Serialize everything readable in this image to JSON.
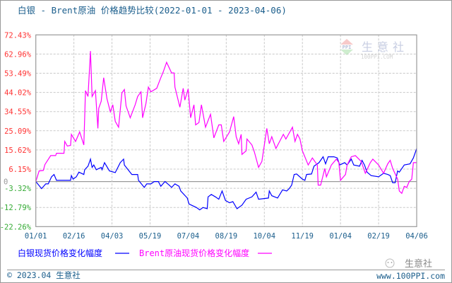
{
  "chart_data": {
    "type": "line",
    "title": "白银 - Brent原油 价格趋势比较(2022-01-01 - 2023-04-06)",
    "xlabel": "",
    "ylabel": "",
    "x_range": [
      "2022-01-01",
      "2023-04-06"
    ],
    "x_ticks": [
      "01/01",
      "02/16",
      "04/03",
      "05/19",
      "07/04",
      "08/19",
      "10/04",
      "11/19",
      "01/04",
      "02/19",
      "04/06"
    ],
    "y_ticks": [
      "72.43%",
      "62.96%",
      "53.49%",
      "44.02%",
      "34.55%",
      "25.09%",
      "15.62%",
      "6.15%",
      "0",
      "-3.32%",
      "-12.79%",
      "-22.26%"
    ],
    "y_tick_values": [
      72.43,
      62.96,
      53.49,
      44.02,
      34.55,
      25.09,
      15.62,
      6.15,
      0,
      -3.32,
      -12.79,
      -22.26
    ],
    "ylim": [
      -22.26,
      72.43
    ],
    "grid": true,
    "legend_position": "bottom-left",
    "colors": {
      "positive_tick": "#ff3333",
      "negative_tick": "#33aa33",
      "zero_tick": "#999999",
      "silver": "#0000ff",
      "brent": "#ff00ff"
    },
    "series": [
      {
        "name": "白银现货价格变化幅度",
        "color": "#0000ff",
        "points": [
          [
            "2022-01-01",
            0
          ],
          [
            "2022-01-08",
            -3.5
          ],
          [
            "2022-01-13",
            -1.17
          ],
          [
            "2022-01-16",
            -1.17
          ],
          [
            "2022-01-20",
            2.33
          ],
          [
            "2022-01-23",
            3.5
          ],
          [
            "2022-01-26",
            0.58
          ],
          [
            "2022-02-12",
            0.58
          ],
          [
            "2022-02-13",
            2.92
          ],
          [
            "2022-02-15",
            1.17
          ],
          [
            "2022-02-19",
            2.33
          ],
          [
            "2022-02-22",
            4.66
          ],
          [
            "2022-02-28",
            3.5
          ],
          [
            "2022-03-01",
            5.83
          ],
          [
            "2022-03-05",
            7.58
          ],
          [
            "2022-03-08",
            11.08
          ],
          [
            "2022-03-10",
            7.0
          ],
          [
            "2022-03-12",
            8.16
          ],
          [
            "2022-03-15",
            5.83
          ],
          [
            "2022-03-21",
            7.0
          ],
          [
            "2022-03-22",
            5.83
          ],
          [
            "2022-03-25",
            9.33
          ],
          [
            "2022-03-31",
            5.25
          ],
          [
            "2022-04-07",
            4.43
          ],
          [
            "2022-04-13",
            9.33
          ],
          [
            "2022-04-17",
            11.08
          ],
          [
            "2022-04-18",
            8.16
          ],
          [
            "2022-04-27",
            3.5
          ],
          [
            "2022-05-04",
            3.5
          ],
          [
            "2022-05-05",
            0.58
          ],
          [
            "2022-05-12",
            -2.92
          ],
          [
            "2022-05-15",
            -1.17
          ],
          [
            "2022-05-20",
            -1.17
          ],
          [
            "2022-05-24",
            0
          ],
          [
            "2022-05-29",
            0
          ],
          [
            "2022-06-01",
            -2.33
          ],
          [
            "2022-06-06",
            0
          ],
          [
            "2022-06-11",
            -1.75
          ],
          [
            "2022-06-14",
            -2.92
          ],
          [
            "2022-06-18",
            -1.17
          ],
          [
            "2022-06-23",
            -2.33
          ],
          [
            "2022-06-25",
            -4.66
          ],
          [
            "2022-07-03",
            -8.16
          ],
          [
            "2022-07-05",
            -11.08
          ],
          [
            "2022-07-14",
            -12.83
          ],
          [
            "2022-07-18",
            -13.99
          ],
          [
            "2022-07-22",
            -12.83
          ],
          [
            "2022-07-27",
            -13.41
          ],
          [
            "2022-07-28",
            -7.58
          ],
          [
            "2022-08-01",
            -6.41
          ],
          [
            "2022-08-06",
            -7.58
          ],
          [
            "2022-08-10",
            -8.75
          ],
          [
            "2022-08-14",
            -4.66
          ],
          [
            "2022-08-18",
            -9.33
          ],
          [
            "2022-08-23",
            -10.49
          ],
          [
            "2022-08-27",
            -9.91
          ],
          [
            "2022-09-01",
            -13.41
          ],
          [
            "2022-09-07",
            -11.66
          ],
          [
            "2022-09-12",
            -8.75
          ],
          [
            "2022-09-19",
            -7.58
          ],
          [
            "2022-09-24",
            -5.25
          ],
          [
            "2022-09-27",
            -8.75
          ],
          [
            "2022-10-09",
            -8.16
          ],
          [
            "2022-10-10",
            -4.66
          ],
          [
            "2022-10-13",
            -7.0
          ],
          [
            "2022-10-20",
            -8.16
          ],
          [
            "2022-10-26",
            -4.08
          ],
          [
            "2022-10-31",
            -4.66
          ],
          [
            "2022-11-03",
            -3.5
          ],
          [
            "2022-11-06",
            -1.75
          ],
          [
            "2022-11-09",
            3.5
          ],
          [
            "2022-11-12",
            3.73
          ],
          [
            "2022-11-19",
            1.17
          ],
          [
            "2022-11-22",
            0.58
          ],
          [
            "2022-11-24",
            3.5
          ],
          [
            "2022-11-30",
            3.73
          ],
          [
            "2022-12-03",
            7.58
          ],
          [
            "2022-12-09",
            9.33
          ],
          [
            "2022-12-14",
            12.24
          ],
          [
            "2022-12-17",
            8.75
          ],
          [
            "2022-12-20",
            12.24
          ],
          [
            "2022-12-27",
            12.24
          ],
          [
            "2022-12-31",
            11.66
          ],
          [
            "2023-01-03",
            8.16
          ],
          [
            "2023-01-09",
            9.33
          ],
          [
            "2023-01-12",
            8.16
          ],
          [
            "2023-01-17",
            11.08
          ],
          [
            "2023-01-20",
            8.16
          ],
          [
            "2023-01-27",
            7.58
          ],
          [
            "2023-01-30",
            10.49
          ],
          [
            "2023-02-02",
            8.16
          ],
          [
            "2023-02-05",
            4.66
          ],
          [
            "2023-02-10",
            2.92
          ],
          [
            "2023-02-19",
            2.33
          ],
          [
            "2023-02-25",
            4.08
          ],
          [
            "2023-03-02",
            3.5
          ],
          [
            "2023-03-05",
            2.92
          ],
          [
            "2023-03-08",
            -0.58
          ],
          [
            "2023-03-11",
            -0.58
          ],
          [
            "2023-03-14",
            5.25
          ],
          [
            "2023-03-16",
            4.66
          ],
          [
            "2023-03-22",
            8.16
          ],
          [
            "2023-03-29",
            8.75
          ],
          [
            "2023-04-02",
            11.66
          ],
          [
            "2023-04-06",
            16.32
          ]
        ]
      },
      {
        "name": "Brent原油现货价格变化幅度",
        "color": "#ff00ff",
        "points": [
          [
            "2022-01-01",
            0
          ],
          [
            "2022-01-05",
            5.25
          ],
          [
            "2022-01-10",
            5.48
          ],
          [
            "2022-01-12",
            8.4
          ],
          [
            "2022-01-19",
            12.83
          ],
          [
            "2022-01-25",
            12.83
          ],
          [
            "2022-01-26",
            13.99
          ],
          [
            "2022-02-04",
            13.99
          ],
          [
            "2022-02-05",
            19.82
          ],
          [
            "2022-02-08",
            17.49
          ],
          [
            "2022-02-12",
            17.84
          ],
          [
            "2022-02-13",
            23.32
          ],
          [
            "2022-02-18",
            19.82
          ],
          [
            "2022-02-23",
            24.49
          ],
          [
            "2022-02-28",
            18.07
          ],
          [
            "2022-03-01",
            31.48
          ],
          [
            "2022-03-02",
            44.89
          ],
          [
            "2022-03-05",
            41.98
          ],
          [
            "2022-03-08",
            64.48
          ],
          [
            "2022-03-10",
            41.98
          ],
          [
            "2022-03-14",
            44.89
          ],
          [
            "2022-03-17",
            26.24
          ],
          [
            "2022-03-18",
            36.15
          ],
          [
            "2022-03-21",
            39.64
          ],
          [
            "2022-03-24",
            51.3
          ],
          [
            "2022-03-28",
            40.81
          ],
          [
            "2022-04-01",
            34.4
          ],
          [
            "2022-04-04",
            37.9
          ],
          [
            "2022-04-07",
            29.73
          ],
          [
            "2022-04-11",
            26.82
          ],
          [
            "2022-04-15",
            43.73
          ],
          [
            "2022-04-18",
            45.47
          ],
          [
            "2022-04-20",
            37.31
          ],
          [
            "2022-04-25",
            31.48
          ],
          [
            "2022-05-01",
            37.9
          ],
          [
            "2022-05-04",
            41.98
          ],
          [
            "2022-05-08",
            44.31
          ],
          [
            "2022-05-10",
            31.48
          ],
          [
            "2022-05-14",
            38.48
          ],
          [
            "2022-05-17",
            46.64
          ],
          [
            "2022-05-20",
            44.31
          ],
          [
            "2022-05-27",
            46.06
          ],
          [
            "2022-06-01",
            51.3
          ],
          [
            "2022-06-04",
            54.22
          ],
          [
            "2022-06-08",
            58.88
          ],
          [
            "2022-06-14",
            53.64
          ],
          [
            "2022-06-17",
            53.64
          ],
          [
            "2022-06-18",
            46.64
          ],
          [
            "2022-06-24",
            36.73
          ],
          [
            "2022-06-28",
            46.06
          ],
          [
            "2022-06-30",
            40.23
          ],
          [
            "2022-07-04",
            45.71
          ],
          [
            "2022-07-07",
            31.48
          ],
          [
            "2022-07-11",
            37.9
          ],
          [
            "2022-07-13",
            27.98
          ],
          [
            "2022-07-17",
            29.15
          ],
          [
            "2022-07-20",
            37.9
          ],
          [
            "2022-07-25",
            26.82
          ],
          [
            "2022-07-31",
            33.23
          ],
          [
            "2022-08-04",
            21.57
          ],
          [
            "2022-08-10",
            27.98
          ],
          [
            "2022-08-13",
            27.98
          ],
          [
            "2022-08-16",
            19.82
          ],
          [
            "2022-08-23",
            24.49
          ],
          [
            "2022-08-28",
            32.07
          ],
          [
            "2022-08-31",
            22.15
          ],
          [
            "2022-09-03",
            18.66
          ],
          [
            "2022-09-06",
            23.32
          ],
          [
            "2022-09-07",
            13.41
          ],
          [
            "2022-09-12",
            15.16
          ],
          [
            "2022-09-13",
            20.99
          ],
          [
            "2022-09-19",
            18.07
          ],
          [
            "2022-09-22",
            14.58
          ],
          [
            "2022-09-27",
            7.0
          ],
          [
            "2022-10-01",
            9.91
          ],
          [
            "2022-10-07",
            26.24
          ],
          [
            "2022-10-10",
            18.66
          ],
          [
            "2022-10-13",
            22.15
          ],
          [
            "2022-10-18",
            16.32
          ],
          [
            "2022-10-27",
            23.32
          ],
          [
            "2022-10-30",
            20.99
          ],
          [
            "2022-11-07",
            26.82
          ],
          [
            "2022-11-10",
            19.82
          ],
          [
            "2022-11-13",
            23.32
          ],
          [
            "2022-11-16",
            20.99
          ],
          [
            "2022-11-19",
            15.16
          ],
          [
            "2022-11-26",
            8.16
          ],
          [
            "2022-12-01",
            11.66
          ],
          [
            "2022-12-07",
            8.16
          ],
          [
            "2022-12-08",
            -1.75
          ],
          [
            "2022-12-11",
            -1.75
          ],
          [
            "2022-12-16",
            6.41
          ],
          [
            "2022-12-18",
            2.33
          ],
          [
            "2022-12-24",
            8.16
          ],
          [
            "2022-12-30",
            11.08
          ],
          [
            "2023-01-02",
            9.33
          ],
          [
            "2023-01-04",
            0.58
          ],
          [
            "2023-01-10",
            3.5
          ],
          [
            "2023-01-12",
            8.16
          ],
          [
            "2023-01-17",
            12.24
          ],
          [
            "2023-01-22",
            12.83
          ],
          [
            "2023-01-29",
            9.91
          ],
          [
            "2023-02-03",
            4.08
          ],
          [
            "2023-02-09",
            9.33
          ],
          [
            "2023-02-12",
            11.08
          ],
          [
            "2023-02-19",
            8.16
          ],
          [
            "2023-02-25",
            4.08
          ],
          [
            "2023-03-02",
            8.75
          ],
          [
            "2023-03-05",
            10.49
          ],
          [
            "2023-03-08",
            6.41
          ],
          [
            "2023-03-14",
            1.17
          ],
          [
            "2023-03-16",
            -4.66
          ],
          [
            "2023-03-19",
            -5.83
          ],
          [
            "2023-03-22",
            -2.33
          ],
          [
            "2023-03-25",
            -2.92
          ],
          [
            "2023-03-28",
            0
          ],
          [
            "2023-03-31",
            1.17
          ],
          [
            "2023-04-02",
            9.33
          ],
          [
            "2023-04-06",
            9.33
          ]
        ]
      }
    ]
  },
  "legend": {
    "silver_label": "白银现货价格变化幅度",
    "brent_label": "Brent原油现货价格变化幅度"
  },
  "watermark": {
    "brand": "生意社",
    "site": "100PPI.COM",
    "logo_text": "PPI"
  },
  "footer": {
    "copyright": "© 2023.04 生意社",
    "site": "www.100PPI.com",
    "wechat_brand": "生意社"
  }
}
